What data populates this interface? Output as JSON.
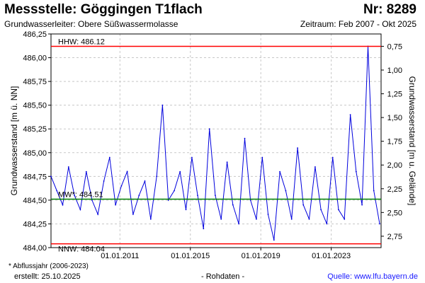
{
  "header": {
    "title": "Messstelle: Göggingen T1flach",
    "number": "Nr: 8289",
    "aquifer": "Grundwasserleiter:  Obere Süßwassermolasse",
    "period": "Zeitraum: Feb 2007 - Okt 2025"
  },
  "footer": {
    "note": "* Abflussjahr (2006-2023)",
    "created": "erstellt:  25.10.2025",
    "raw": "- Rohdaten -",
    "source": "Quelle: www.lfu.bayern.de"
  },
  "colors": {
    "series": "#0000dd",
    "hhw": "#ff0000",
    "nnw": "#ff0000",
    "mw": "#008000",
    "grid": "#c8c8c8"
  },
  "chart_data": {
    "type": "line",
    "title": "Messstelle: Göggingen T1flach",
    "ylabel": "Grundwasserstand [m ü. NN]",
    "y2label": "Grundwasserstand [m u. Gelände]",
    "ylim": [
      484.0,
      486.25
    ],
    "y_ticks": [
      "484,00",
      "484,25",
      "484,50",
      "484,75",
      "485,00",
      "485,25",
      "485,50",
      "485,75",
      "486,00",
      "486,25"
    ],
    "y2_ticks": [
      "0,75",
      "1,00",
      "1,25",
      "1,50",
      "1,75",
      "2,00",
      "2,25",
      "2,50",
      "2,75"
    ],
    "x_range": [
      "2007-02-01",
      "2025-10-31"
    ],
    "x_ticks": [
      "01.01.2011",
      "01.01.2015",
      "01.01.2019",
      "01.01.2023"
    ],
    "grid": true,
    "reference_lines": [
      {
        "label": "HHW: 486.12",
        "value": 486.12,
        "color": "#ff0000"
      },
      {
        "label": "MW*: 484.51",
        "value": 484.51,
        "color": "#008000"
      },
      {
        "label": "NNW: 484.04",
        "value": 484.04,
        "color": "#ff0000"
      }
    ],
    "series": [
      {
        "x": [
          "2007-02",
          "2007-06",
          "2007-10",
          "2008-02",
          "2008-06",
          "2008-10",
          "2009-02",
          "2009-06",
          "2009-10",
          "2010-02",
          "2010-06",
          "2010-10",
          "2011-02",
          "2011-06",
          "2011-10",
          "2012-02",
          "2012-06",
          "2012-10",
          "2013-02",
          "2013-06",
          "2013-10",
          "2014-02",
          "2014-06",
          "2014-10",
          "2015-02",
          "2015-06",
          "2015-10",
          "2016-02",
          "2016-06",
          "2016-10",
          "2017-02",
          "2017-06",
          "2017-10",
          "2018-02",
          "2018-06",
          "2018-10",
          "2019-02",
          "2019-06",
          "2019-10",
          "2020-02",
          "2020-06",
          "2020-10",
          "2021-02",
          "2021-06",
          "2021-10",
          "2022-02",
          "2022-06",
          "2022-10",
          "2023-02",
          "2023-06",
          "2023-10",
          "2024-02",
          "2024-06",
          "2024-10",
          "2025-02",
          "2025-06",
          "2025-10"
        ],
        "y": [
          484.75,
          484.6,
          484.45,
          484.85,
          484.55,
          484.4,
          484.8,
          484.5,
          484.35,
          484.7,
          484.95,
          484.45,
          484.65,
          484.8,
          484.35,
          484.55,
          484.7,
          484.3,
          484.75,
          485.5,
          484.5,
          484.6,
          484.8,
          484.4,
          484.95,
          484.55,
          484.2,
          485.25,
          484.55,
          484.3,
          484.9,
          484.45,
          484.25,
          485.15,
          484.5,
          484.3,
          484.95,
          484.35,
          484.08,
          484.8,
          484.6,
          484.3,
          485.05,
          484.45,
          484.3,
          484.85,
          484.4,
          484.25,
          484.95,
          484.4,
          484.3,
          485.4,
          484.8,
          484.45,
          486.12,
          484.6,
          484.25
        ]
      }
    ]
  }
}
